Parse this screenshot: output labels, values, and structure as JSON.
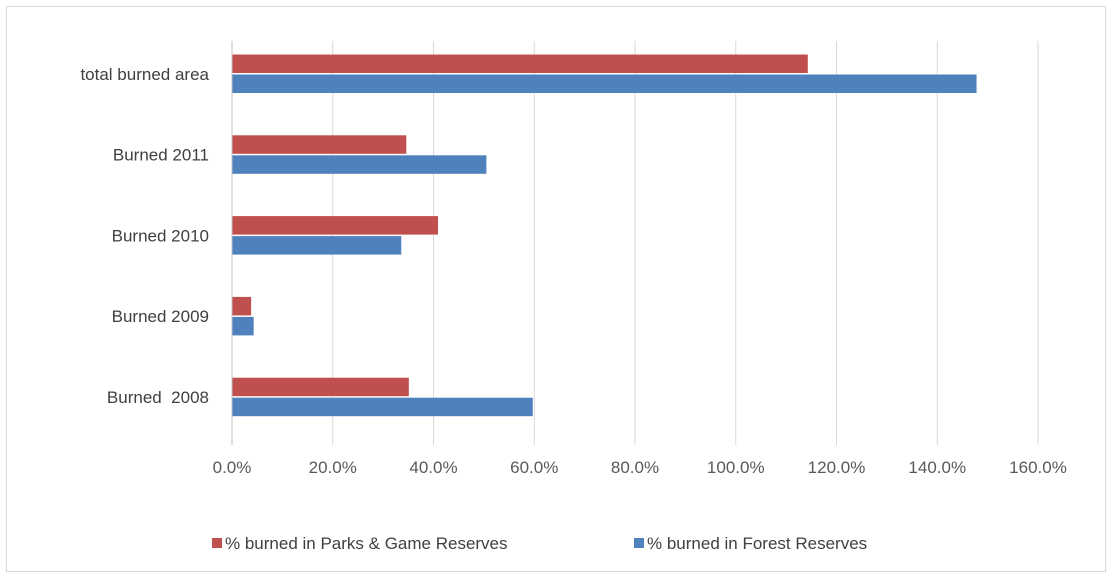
{
  "chart_data": {
    "type": "bar",
    "orientation": "horizontal",
    "categories": [
      "total burned area",
      "Burned 2011",
      "Burned 2010",
      "Burned 2009",
      "Burned  2008"
    ],
    "series": [
      {
        "name": "% burned in Parks & Game Reserves",
        "color": "#c0504d",
        "values": [
          114.3,
          34.6,
          40.9,
          3.8,
          35.1
        ]
      },
      {
        "name": "% burned in Forest Reserves",
        "color": "#4f81bd",
        "values": [
          147.8,
          50.5,
          33.6,
          4.3,
          59.7
        ]
      }
    ],
    "xlim": [
      0,
      160
    ],
    "xticks": [
      "0.0%",
      "20.0%",
      "40.0%",
      "60.0%",
      "80.0%",
      "100.0%",
      "120.0%",
      "140.0%",
      "160.0%"
    ],
    "grid": true,
    "legend_position": "bottom",
    "title": "",
    "xlabel": "",
    "ylabel": ""
  }
}
